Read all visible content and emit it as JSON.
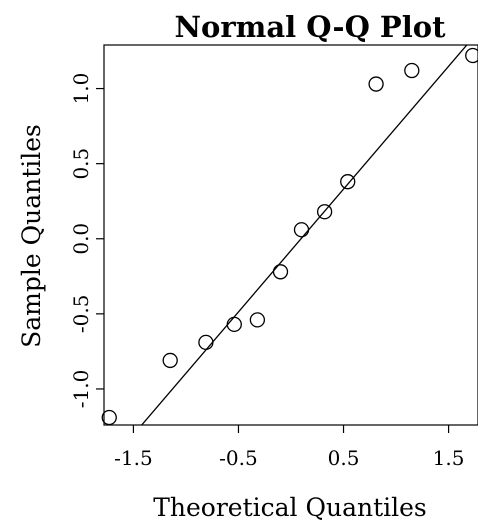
{
  "chart_data": {
    "type": "scatter",
    "title": "Normal Q-Q Plot",
    "xlabel": "Theoretical Quantiles",
    "ylabel": "Sample Quantiles",
    "xlim": [
      -1.78,
      1.78
    ],
    "ylim": [
      -1.24,
      1.29
    ],
    "xticks": [
      -1.5,
      -0.5,
      0.5,
      1.5
    ],
    "xtick_labels": [
      "-1.5",
      "-0.5",
      "0.5",
      "1.5"
    ],
    "yticks": [
      -1.0,
      -0.5,
      0.0,
      0.5,
      1.0
    ],
    "ytick_labels": [
      "-1.0",
      "-0.5",
      "0.0",
      "0.5",
      "1.0"
    ],
    "points": [
      {
        "x": -1.73,
        "y": -1.19
      },
      {
        "x": -1.15,
        "y": -0.81
      },
      {
        "x": -0.81,
        "y": -0.69
      },
      {
        "x": -0.54,
        "y": -0.57
      },
      {
        "x": -0.32,
        "y": -0.54
      },
      {
        "x": -0.1,
        "y": -0.22
      },
      {
        "x": 0.1,
        "y": 0.06
      },
      {
        "x": 0.32,
        "y": 0.18
      },
      {
        "x": 0.54,
        "y": 0.38
      },
      {
        "x": 0.81,
        "y": 1.03
      },
      {
        "x": 1.15,
        "y": 1.12
      },
      {
        "x": 1.73,
        "y": 1.22
      }
    ],
    "reference_line": {
      "x1": -1.47,
      "y1": -1.28,
      "x2": 1.71,
      "y2": 1.32
    },
    "grid": false,
    "legend": "none"
  }
}
